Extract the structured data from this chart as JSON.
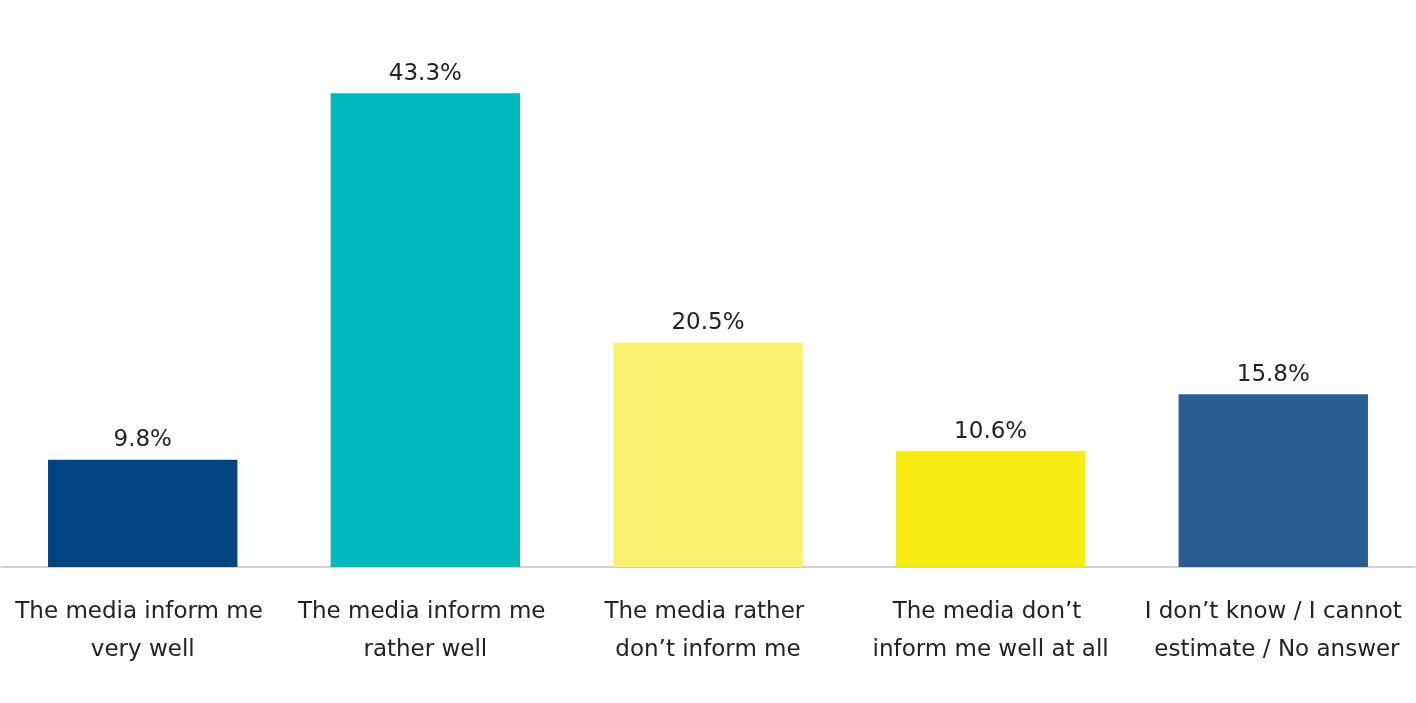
{
  "chart_data": {
    "type": "bar",
    "categories": [
      "The media inform me very well",
      "The media inform me rather well",
      "The media rather don’t inform me",
      "The media don’t inform me well at all",
      "I don’t know / I cannot estimate / No answer"
    ],
    "values": [
      9.8,
      43.3,
      20.5,
      10.6,
      15.8
    ],
    "colors": [
      "#004481",
      "#00b9bc",
      "#f9f26f",
      "#f7ec12",
      "#2a5d93"
    ],
    "value_labels": [
      "9.8%",
      "43.3%",
      "20.5%",
      "10.6%",
      "15.8%"
    ],
    "grid": false
  }
}
